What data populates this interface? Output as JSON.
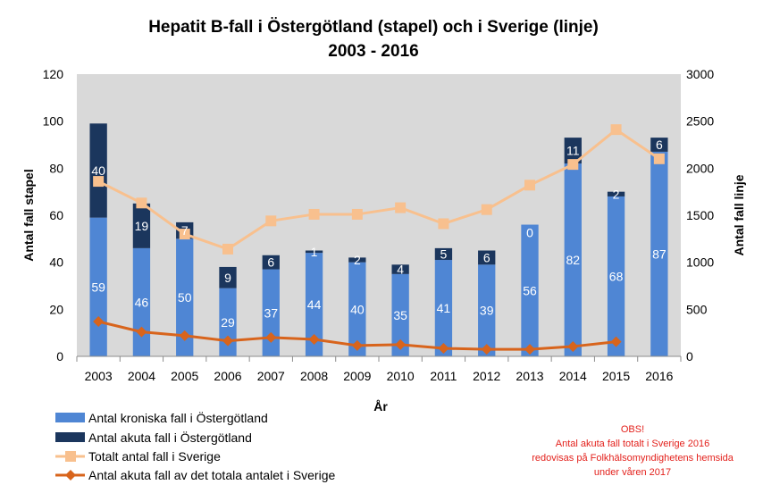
{
  "chart_data": {
    "type": "bar",
    "title": "Hepatit B-fall i Östergötland (stapel) och i Sverige (linje)",
    "subtitle": "2003 - 2016",
    "xlabel": "År",
    "ylabel_left": "Antal fall stapel",
    "ylabel_right": "Antal fall linje",
    "ylim_left": [
      0,
      120
    ],
    "yticks_left": [
      "0",
      "20",
      "40",
      "60",
      "80",
      "100",
      "120"
    ],
    "ylim_right": [
      0,
      3000
    ],
    "yticks_right": [
      "0",
      "500",
      "1000",
      "1500",
      "2000",
      "2500",
      "3000"
    ],
    "categories": [
      "2003",
      "2004",
      "2005",
      "2006",
      "2007",
      "2008",
      "2009",
      "2010",
      "2011",
      "2012",
      "2013",
      "2014",
      "2015",
      "2016"
    ],
    "series": [
      {
        "name": "Antal kroniska fall i Östergötland",
        "kind": "bar",
        "axis": "left",
        "color": "#4f86d4",
        "values": [
          59,
          46,
          50,
          29,
          37,
          44,
          40,
          35,
          41,
          39,
          56,
          82,
          68,
          87
        ],
        "labels": [
          "59",
          "46",
          "50",
          "29",
          "37",
          "44",
          "40",
          "35",
          "41",
          "39",
          "56",
          "82",
          "68",
          "87"
        ]
      },
      {
        "name": "Antal akuta fall i Östergötland",
        "kind": "bar",
        "axis": "left",
        "color": "#1b365d",
        "values": [
          40,
          19,
          7,
          9,
          6,
          1,
          2,
          4,
          5,
          6,
          0,
          11,
          2,
          6
        ],
        "labels": [
          "40",
          "19",
          "7",
          "9",
          "6",
          "1",
          "2",
          "4",
          "5",
          "6",
          "0",
          "11",
          "2",
          "6"
        ]
      },
      {
        "name": "Totalt antal fall i Sverige",
        "kind": "line",
        "axis": "right",
        "color": "#f8c08e",
        "marker": "square",
        "values": [
          1860,
          1630,
          1300,
          1140,
          1440,
          1510,
          1510,
          1580,
          1410,
          1560,
          1820,
          2040,
          2410,
          2100
        ]
      },
      {
        "name": "Antal akuta fall av det totala antalet i Sverige",
        "kind": "line",
        "axis": "right",
        "color": "#d8641c",
        "marker": "diamond",
        "values": [
          370,
          260,
          220,
          165,
          200,
          180,
          115,
          125,
          85,
          75,
          75,
          105,
          155,
          null
        ]
      }
    ],
    "note": {
      "lines": [
        "OBS!",
        "Antal akuta fall  totalt i Sverige  2016",
        "redovisas på Folkhälsomyndighetens hemsida",
        "under våren 2017"
      ],
      "color": "#e3211c"
    },
    "plot_background": "#d9d9d9",
    "grid": false,
    "legend_position": "bottom-left"
  }
}
